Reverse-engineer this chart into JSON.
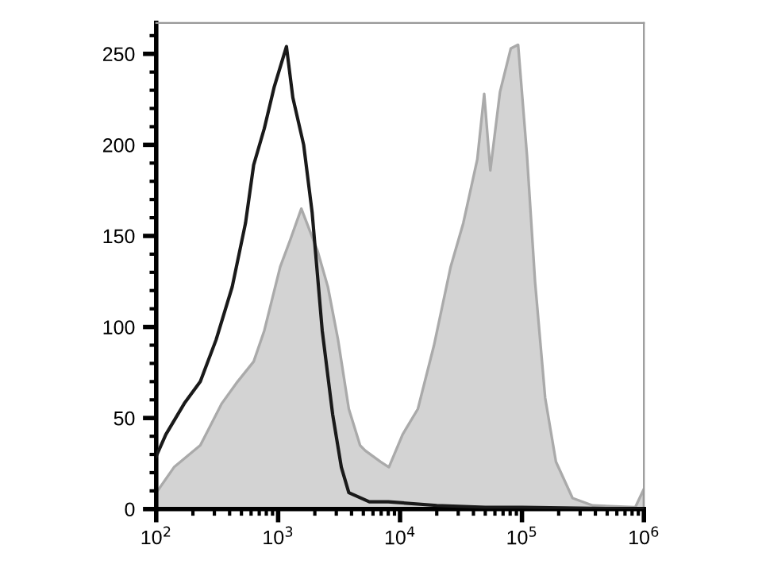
{
  "chart_data": {
    "type": "area",
    "log": "x",
    "grid": false,
    "legend": false,
    "xlim": [
      100,
      1000000
    ],
    "ylim": [
      0,
      267
    ],
    "xticks": [
      {
        "value": 100,
        "label": "10$^{2}$"
      },
      {
        "value": 1000,
        "label": "10$^{3}$"
      },
      {
        "value": 10000,
        "label": "10$^{4}$"
      },
      {
        "value": 100000,
        "label": "10$^{5}$"
      },
      {
        "value": 1000000,
        "label": "10$^{6}$"
      }
    ],
    "yticks": [
      0,
      50,
      100,
      150,
      200,
      250
    ],
    "series": [
      {
        "color": "#d3d3d3",
        "x": [
          100,
          140,
          230,
          345,
          465,
          630,
          770,
          1040,
          1260,
          1550,
          2100,
          2560,
          3100,
          3800,
          4700,
          5200,
          6900,
          8100,
          10500,
          14000,
          19000,
          26000,
          33000,
          43000,
          49000,
          55000,
          66000,
          81000,
          93000,
          110000,
          128000,
          155000,
          190000,
          260000,
          380000,
          850000,
          1000000
        ],
        "values": [
          9,
          23,
          35,
          58,
          70,
          81,
          98,
          133,
          148,
          165,
          142,
          122,
          93,
          55,
          35,
          32,
          26,
          23,
          41,
          55,
          90,
          133,
          157,
          192,
          228,
          186,
          229,
          253,
          255,
          194,
          125,
          61,
          26,
          6,
          2,
          1,
          11
        ]
      },
      {
        "type": "line",
        "color": "#1a1a1a",
        "x": [
          100,
          120,
          170,
          230,
          310,
          420,
          540,
          630,
          770,
          930,
          1170,
          1320,
          1620,
          1900,
          2300,
          2800,
          3300,
          3800,
          5600,
          8000,
          20000,
          50000,
          100000,
          1000000
        ],
        "values": [
          29,
          41,
          58,
          70,
          93,
          122,
          157,
          189,
          209,
          232,
          254,
          226,
          200,
          163,
          98,
          52,
          23,
          9,
          4,
          4,
          2,
          1,
          1,
          0
        ]
      }
    ]
  }
}
